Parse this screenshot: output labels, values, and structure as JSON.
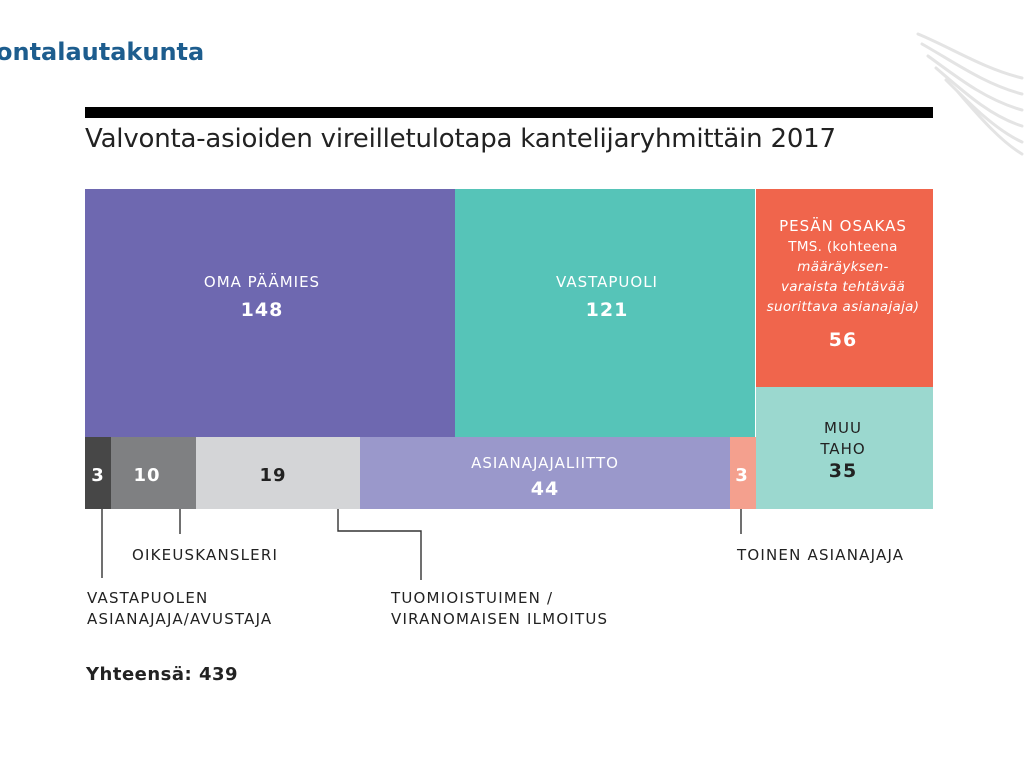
{
  "header": {
    "brand": "ontalautakunta",
    "logo_icon": "wing-logo-icon"
  },
  "chart_data": {
    "type": "treemap",
    "title": "Valvonta-asioiden vireilletulotapa kantelijaryhmittäin 2017",
    "total_label": "Yhteensä: 439",
    "total": 439,
    "segments": [
      {
        "key": "oma",
        "label": [
          "OMA PÄÄMIES"
        ],
        "value": 148,
        "color": "#6e68b0"
      },
      {
        "key": "vastapuoli",
        "label": [
          "VASTAPUOLI"
        ],
        "value": 121,
        "color": "#56c4b8"
      },
      {
        "key": "pesan",
        "label": [
          "PESÄN OSAKAS",
          "TMS. (kohteena",
          "määräyksen-",
          "varaista tehtävää",
          "suorittava asianajaja)"
        ],
        "value": 56,
        "color": "#f0654c"
      },
      {
        "key": "muu",
        "label": [
          "MUU",
          "TAHO"
        ],
        "value": 35,
        "color": "#9bd8cf"
      },
      {
        "key": "vastapuolen",
        "label": [
          "VASTAPUOLEN",
          "ASIANAJAJA/AVUSTAJA"
        ],
        "value": 3,
        "color": "#474747"
      },
      {
        "key": "oikeuskansleri",
        "label": [
          "OIKEUSKANSLERI"
        ],
        "value": 10,
        "color": "#7f8082"
      },
      {
        "key": "tuomioistuin",
        "label": [
          "TUOMIOISTUIMEN /",
          "VIRANOMAISEN ILMOITUS"
        ],
        "value": 19,
        "color": "#d4d5d7"
      },
      {
        "key": "liitto",
        "label": [
          "ASIANAJAJALIITTO"
        ],
        "value": 44,
        "color": "#9a98cb"
      },
      {
        "key": "toinen",
        "label": [
          "TOINEN ASIANAJAJA"
        ],
        "value": 3,
        "color": "#f4a08e"
      }
    ]
  }
}
